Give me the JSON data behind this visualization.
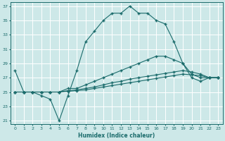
{
  "xlabel": "Humidex (Indice chaleur)",
  "xlim": [
    -0.5,
    23.5
  ],
  "ylim": [
    20.5,
    37.5
  ],
  "yticks": [
    21,
    23,
    25,
    27,
    29,
    31,
    33,
    35,
    37
  ],
  "xticks": [
    0,
    1,
    2,
    3,
    4,
    5,
    6,
    7,
    8,
    9,
    10,
    11,
    12,
    13,
    14,
    15,
    16,
    17,
    18,
    19,
    20,
    21,
    22,
    23
  ],
  "bg_color": "#cde8e8",
  "line_color": "#1a6b6b",
  "grid_color": "#ffffff",
  "lines": [
    {
      "x": [
        0,
        1,
        2,
        3,
        4,
        5,
        6,
        7,
        8,
        9,
        10,
        11,
        12,
        13,
        14,
        15,
        16,
        17,
        18,
        19,
        20,
        21,
        22,
        23
      ],
      "y": [
        28,
        25,
        25,
        24.5,
        24,
        21,
        24.5,
        28,
        32,
        33.5,
        35,
        36,
        36,
        37,
        36,
        36,
        35,
        34.5,
        32,
        29,
        27,
        26.5,
        27,
        27
      ]
    },
    {
      "x": [
        0,
        1,
        2,
        3,
        4,
        5,
        6,
        7,
        8,
        9,
        10,
        11,
        12,
        13,
        14,
        15,
        16,
        17,
        18,
        19,
        20,
        21,
        22,
        23
      ],
      "y": [
        25,
        25,
        25,
        25,
        25,
        25,
        25.5,
        25.5,
        26,
        26.5,
        27,
        27.5,
        28,
        28.5,
        29,
        29.5,
        30,
        30,
        29.5,
        29,
        27.5,
        27,
        27,
        27
      ]
    },
    {
      "x": [
        0,
        1,
        2,
        3,
        4,
        5,
        6,
        7,
        8,
        9,
        10,
        11,
        12,
        13,
        14,
        15,
        16,
        17,
        18,
        19,
        20,
        21,
        22,
        23
      ],
      "y": [
        25,
        25,
        25,
        25,
        25,
        25,
        25.2,
        25.3,
        25.5,
        25.7,
        26,
        26.3,
        26.5,
        26.8,
        27,
        27.2,
        27.4,
        27.6,
        27.8,
        28,
        27.8,
        27.5,
        27,
        27
      ]
    },
    {
      "x": [
        0,
        1,
        2,
        3,
        4,
        5,
        6,
        7,
        8,
        9,
        10,
        11,
        12,
        13,
        14,
        15,
        16,
        17,
        18,
        19,
        20,
        21,
        22,
        23
      ],
      "y": [
        25,
        25,
        25,
        25,
        25,
        25,
        25.1,
        25.2,
        25.3,
        25.5,
        25.7,
        25.9,
        26.1,
        26.3,
        26.5,
        26.7,
        26.9,
        27.1,
        27.3,
        27.5,
        27.4,
        27.3,
        27,
        27
      ]
    }
  ],
  "marker": "+",
  "markersize": 3.5,
  "linewidth": 0.8
}
